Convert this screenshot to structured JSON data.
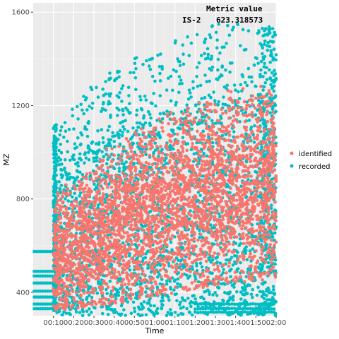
{
  "chart_data": {
    "type": "scatter",
    "xlabel": "Time",
    "ylabel": "MZ",
    "x_ticks": [
      "00:10",
      "00:20",
      "00:30",
      "00:40",
      "00:50",
      "01:00",
      "01:10",
      "01:20",
      "01:30",
      "01:40",
      "01:50",
      "02:00"
    ],
    "x_tick_minutes": [
      10,
      20,
      30,
      40,
      50,
      60,
      70,
      80,
      90,
      100,
      110,
      120
    ],
    "xlim_minutes": [
      0,
      120
    ],
    "ylim": [
      300,
      1640
    ],
    "y_ticks": [
      400,
      800,
      1200,
      1600
    ],
    "grid": true,
    "legend_position": "right",
    "annotation": {
      "header": "Metric value",
      "label": "IS-2",
      "value": "623.318573"
    },
    "series": [
      {
        "name": "identified",
        "color": "#F8766D",
        "description_points": [
          {
            "x": 10,
            "y_low": 320,
            "y_high": 780
          },
          {
            "x": 30,
            "y_low": 340,
            "y_high": 950
          },
          {
            "x": 60,
            "y_low": 380,
            "y_high": 1100
          },
          {
            "x": 90,
            "y_low": 430,
            "y_high": 1220
          },
          {
            "x": 120,
            "y_low": 460,
            "y_high": 1250
          }
        ]
      },
      {
        "name": "recorded",
        "color": "#00BFC4",
        "description_points": [
          {
            "x": 10,
            "y_low": 300,
            "y_high": 1100
          },
          {
            "x": 30,
            "y_low": 300,
            "y_high": 1300
          },
          {
            "x": 60,
            "y_low": 300,
            "y_high": 1450
          },
          {
            "x": 90,
            "y_low": 300,
            "y_high": 1550
          },
          {
            "x": 120,
            "y_low": 300,
            "y_high": 1560
          }
        ]
      }
    ]
  }
}
